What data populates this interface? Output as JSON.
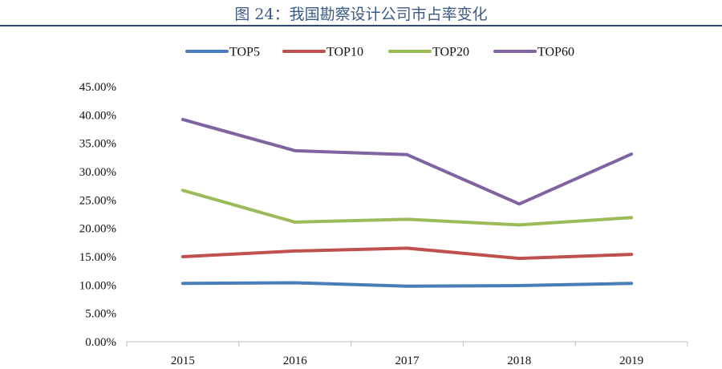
{
  "figure": {
    "title": "图 24：我国勘察设计公司市占率变化"
  },
  "chart_data": {
    "type": "line",
    "x": [
      "2015",
      "2016",
      "2017",
      "2018",
      "2019"
    ],
    "ylim": [
      0,
      45
    ],
    "yticks": [
      0,
      5,
      10,
      15,
      20,
      25,
      30,
      35,
      40,
      45
    ],
    "ytick_labels": [
      "0.00%",
      "5.00%",
      "10.00%",
      "15.00%",
      "20.00%",
      "25.00%",
      "30.00%",
      "35.00%",
      "40.00%",
      "45.00%"
    ],
    "y_unit": "%",
    "grid": false,
    "legend_position": "top",
    "series": [
      {
        "name": "TOP5",
        "color": "#4a7ebb",
        "values": [
          10.3,
          10.4,
          9.8,
          9.9,
          10.3
        ]
      },
      {
        "name": "TOP10",
        "color": "#c0504d",
        "values": [
          15.0,
          16.0,
          16.5,
          14.7,
          15.4
        ]
      },
      {
        "name": "TOP20",
        "color": "#9bbb59",
        "values": [
          26.7,
          21.1,
          21.6,
          20.6,
          21.9
        ]
      },
      {
        "name": "TOP60",
        "color": "#8064a2",
        "values": [
          39.2,
          33.7,
          33.0,
          24.3,
          33.1
        ]
      }
    ]
  }
}
